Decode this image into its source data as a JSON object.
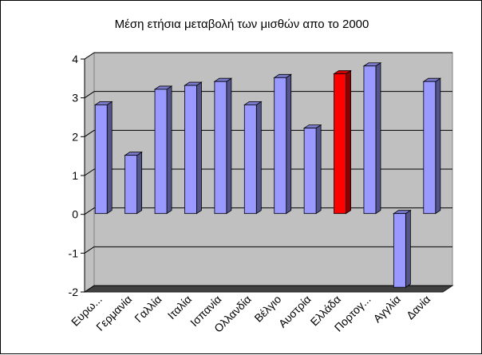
{
  "chart_data": {
    "type": "bar",
    "title": "Μέση ετήσια μεταβολή των μισθών απο το 2000",
    "categories": [
      "Ευρω...",
      "Γερμανία",
      "Γαλλία",
      "Ιταλία",
      "Ισπανία",
      "Ολλανδία",
      "Βέλγιο",
      "Αυστρία",
      "Ελλάδα",
      "Πορτογ...",
      "Αγγλία",
      "Δανία"
    ],
    "values": [
      2.8,
      1.5,
      3.2,
      3.3,
      3.4,
      2.8,
      3.5,
      2.2,
      3.6,
      3.8,
      -1.9,
      3.4
    ],
    "ylim": [
      -2,
      4
    ],
    "yticks": [
      "-2",
      "-1",
      "0",
      "1",
      "2",
      "3",
      "4"
    ],
    "grid": true,
    "legend": "none",
    "bar_color": "#9999FF",
    "highlight_color": "#FF0000",
    "highlight_category": "Ελλάδα",
    "plot_color": "#C0C0C0"
  }
}
